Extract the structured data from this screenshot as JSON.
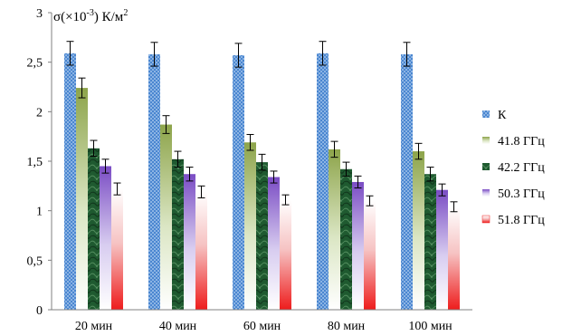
{
  "chart_data": {
    "type": "bar",
    "ylabel": "σ(×10⁻³) К/м²",
    "ylabel_parts": {
      "base": "σ(×10",
      "exp": "-3",
      "mid": ") К/м",
      "sup2": "2"
    },
    "ylim": [
      0,
      3
    ],
    "yticks": [
      "0",
      "0,5",
      "1",
      "1,5",
      "2",
      "2,5",
      "3"
    ],
    "ytick_values": [
      0,
      0.5,
      1,
      1.5,
      2,
      2.5,
      3
    ],
    "categories": [
      "20 мин",
      "40 мин",
      "60 мин",
      "80 мин",
      "100 мин"
    ],
    "legend_position": "right",
    "grid": false,
    "error_bars": true,
    "series": [
      {
        "name": "К",
        "values": [
          2.59,
          2.58,
          2.57,
          2.59,
          2.58
        ],
        "errors": [
          0.12,
          0.12,
          0.12,
          0.12,
          0.12
        ],
        "color": "#3f7fcc",
        "pattern": "dots"
      },
      {
        "name": "41.8 ГГц",
        "values": [
          2.24,
          1.87,
          1.69,
          1.62,
          1.6
        ],
        "errors": [
          0.1,
          0.09,
          0.08,
          0.08,
          0.08
        ],
        "color": "#8fa84e",
        "pattern": "gradient"
      },
      {
        "name": "42.2 ГГц",
        "values": [
          1.63,
          1.52,
          1.49,
          1.42,
          1.37
        ],
        "errors": [
          0.08,
          0.08,
          0.08,
          0.07,
          0.07
        ],
        "color": "#1e5c30",
        "pattern": "marble"
      },
      {
        "name": "50.3 ГГц",
        "values": [
          1.45,
          1.37,
          1.34,
          1.29,
          1.21
        ],
        "errors": [
          0.07,
          0.07,
          0.06,
          0.06,
          0.06
        ],
        "color": "#7b4fc4",
        "pattern": "gradient"
      },
      {
        "name": "51.8 ГГц",
        "values": [
          1.22,
          1.19,
          1.11,
          1.1,
          1.04
        ],
        "errors": [
          0.06,
          0.06,
          0.05,
          0.05,
          0.05
        ],
        "color": "#ee2222",
        "pattern": "gradient-reverse"
      }
    ]
  }
}
